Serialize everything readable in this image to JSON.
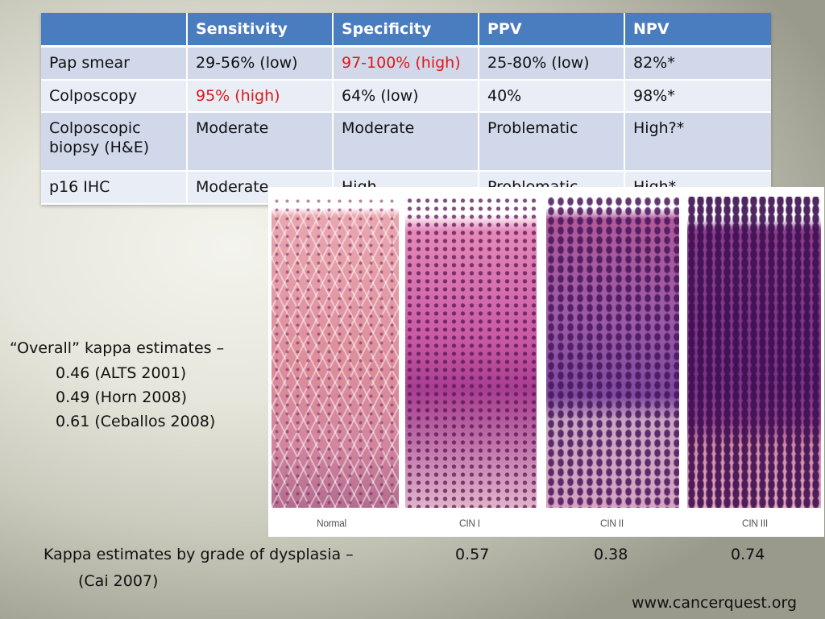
{
  "table": {
    "headers": [
      "",
      "Sensitivity",
      "Specificity",
      "PPV",
      "NPV"
    ],
    "highlight_color": "#e01818",
    "header_color": "#4a7cc0",
    "rows": [
      {
        "method": "Pap smear",
        "sensitivity": "29-56% (low)",
        "specificity": "97-100% (high)",
        "ppv": "25-80% (low)",
        "npv": "82%*"
      },
      {
        "method": "Colposcopy",
        "sensitivity": "95% (high)",
        "specificity": "64% (low)",
        "ppv": "40%",
        "npv": "98%*"
      },
      {
        "method": "Colposcopic biopsy (H&E)",
        "sensitivity": "Moderate",
        "specificity": "Moderate",
        "ppv": "Problematic",
        "npv": "High?*"
      },
      {
        "method": "p16 IHC",
        "sensitivity": "Moderate",
        "specificity": "High",
        "ppv": "Problematic",
        "npv": "High*"
      }
    ]
  },
  "kappa": {
    "heading": "“Overall” kappa estimates –",
    "estimates": [
      "0.46 (ALTS 2001)",
      "0.49 (Horn 2008)",
      "0.61 (Ceballos 2008)"
    ]
  },
  "histology": {
    "panels": [
      "Normal",
      "CIN I",
      "CIN II",
      "CIN III"
    ]
  },
  "grade_kappa": {
    "caption": "Kappa estimates by grade of dysplasia –",
    "citation": "(Cai 2007)",
    "values": [
      "0.57",
      "0.38",
      "0.74"
    ]
  },
  "source": "www.cancerquest.org"
}
